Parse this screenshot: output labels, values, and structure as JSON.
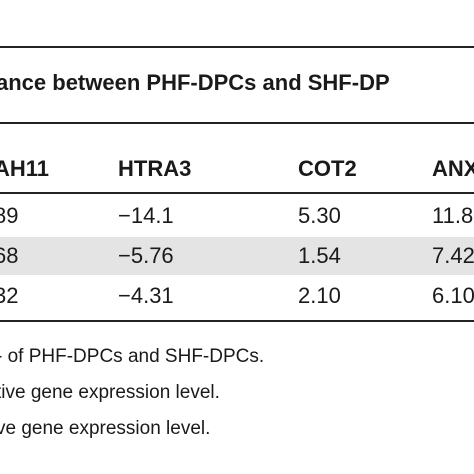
{
  "table": {
    "title_fragment": "ance between PHF-DPCs and SHF-DP",
    "headers": [
      "AH11",
      "HTRA3",
      "COT2",
      "ANX"
    ],
    "rows": [
      [
        "89",
        "−14.1",
        "5.30",
        "11.8"
      ],
      [
        "68",
        "−5.76",
        "1.54",
        "7.42"
      ],
      [
        "32",
        "−4.31",
        "2.10",
        "6.10"
      ]
    ],
    "highlighted_row_index": 1,
    "highlight_color": "#e4e4e4"
  },
  "footnotes": [
    "- of PHF-DPCs and SHF-DPCs.",
    "tive gene expression level.",
    "ve gene expression level."
  ]
}
